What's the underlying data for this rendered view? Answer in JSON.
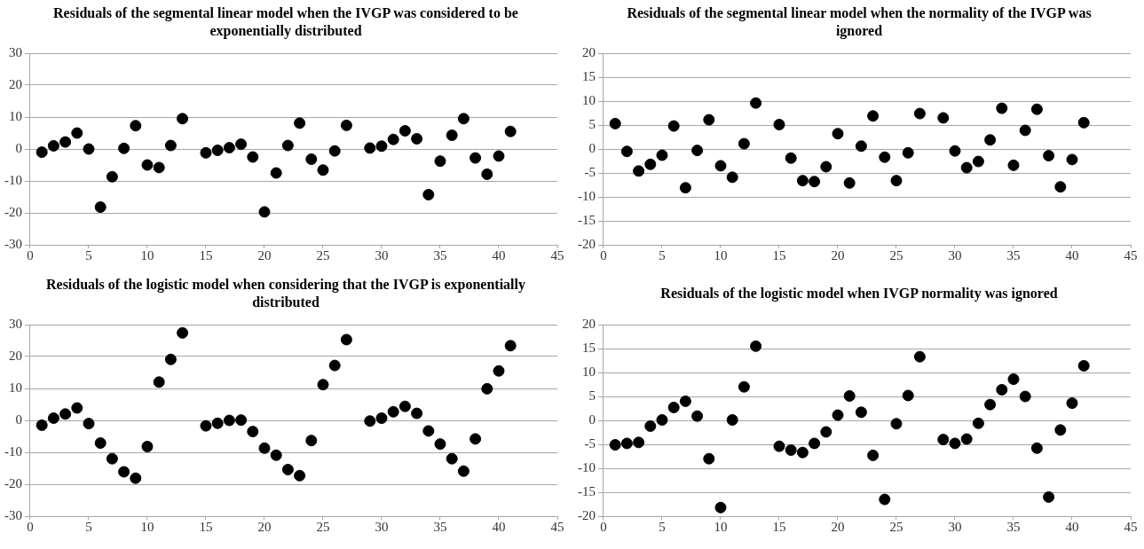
{
  "chart_data": [
    {
      "type": "scatter",
      "title": "Residuals of the segmental linear model when the IVGP was considered to be exponentially distributed",
      "x": [
        1,
        2,
        3,
        4,
        5,
        6,
        7,
        8,
        9,
        10,
        11,
        12,
        13,
        15,
        16,
        17,
        18,
        19,
        20,
        21,
        22,
        23,
        24,
        25,
        26,
        27,
        29,
        30,
        31,
        32,
        33,
        34,
        35,
        36,
        37,
        38,
        39,
        40,
        41
      ],
      "values": [
        -1,
        1,
        2.2,
        5,
        0,
        -18.2,
        -8.7,
        0.2,
        7.3,
        -5,
        -5.8,
        1.1,
        9.5,
        -1.2,
        -0.4,
        0.4,
        1.5,
        -2.5,
        -19.7,
        -7.5,
        1.1,
        8.1,
        -3.2,
        -6.6,
        -0.6,
        7.4,
        0.3,
        0.9,
        3,
        5.7,
        3.2,
        -14.3,
        -3.8,
        4.3,
        9.5,
        -2.8,
        -7.9,
        -2.2,
        5.5
      ],
      "color": "#000000",
      "marker": "circle",
      "grid": "y",
      "xlim": [
        0,
        45
      ],
      "xticks": [
        0,
        5,
        10,
        15,
        20,
        25,
        30,
        35,
        40,
        45
      ],
      "ylim": [
        -30,
        30
      ],
      "yticks": [
        -30,
        -20,
        -10,
        0,
        10,
        20,
        30
      ]
    },
    {
      "type": "scatter",
      "title": "Residuals of the segmental linear model when the normality of the IVGP was ignored",
      "x": [
        1,
        2,
        3,
        4,
        5,
        6,
        7,
        8,
        9,
        10,
        11,
        12,
        13,
        15,
        16,
        17,
        18,
        19,
        20,
        21,
        22,
        23,
        24,
        25,
        26,
        27,
        29,
        30,
        31,
        32,
        33,
        34,
        35,
        36,
        37,
        38,
        39,
        40,
        41
      ],
      "values": [
        5.3,
        -0.5,
        -4.6,
        -3.2,
        -1.3,
        4.8,
        -8.1,
        -0.3,
        6.1,
        -3.5,
        -5.9,
        1.1,
        9.6,
        5.1,
        -1.9,
        -6.6,
        -6.8,
        -3.7,
        3.2,
        -7.1,
        0.6,
        6.9,
        -1.7,
        -6.6,
        -0.8,
        7.4,
        6.5,
        -0.4,
        -3.9,
        -2.6,
        1.9,
        8.5,
        -3.4,
        3.9,
        8.3,
        -1.4,
        -7.9,
        -2.2,
        5.5
      ],
      "color": "#000000",
      "marker": "circle",
      "grid": "y",
      "xlim": [
        0,
        45
      ],
      "xticks": [
        0,
        5,
        10,
        15,
        20,
        25,
        30,
        35,
        40,
        45
      ],
      "ylim": [
        -20,
        20
      ],
      "yticks": [
        -20,
        -15,
        -10,
        -5,
        0,
        5,
        10,
        15,
        20
      ]
    },
    {
      "type": "scatter",
      "title": "Residuals of the logistic model when considering that the IVGP is exponentially distributed",
      "x": [
        1,
        2,
        3,
        4,
        5,
        6,
        7,
        8,
        9,
        10,
        11,
        12,
        13,
        15,
        16,
        17,
        18,
        19,
        20,
        21,
        22,
        23,
        24,
        25,
        26,
        27,
        29,
        30,
        31,
        32,
        33,
        34,
        35,
        36,
        37,
        38,
        39,
        40,
        41
      ],
      "values": [
        -1.5,
        0.7,
        2,
        3.9,
        -1,
        -7.1,
        -12,
        -16.1,
        -18.1,
        -8.2,
        12,
        19.1,
        27.4,
        -1.7,
        -0.9,
        0,
        0.1,
        -3.5,
        -8.7,
        -10.9,
        -15.4,
        -17.3,
        -6.3,
        11.2,
        17.2,
        25.3,
        -0.2,
        0.7,
        2.7,
        4.4,
        2.2,
        -3.3,
        -7.4,
        -12,
        -15.9,
        -5.8,
        9.9,
        15.5,
        23.4
      ],
      "color": "#000000",
      "marker": "circle",
      "grid": "y",
      "xlim": [
        0,
        45
      ],
      "xticks": [
        0,
        5,
        10,
        15,
        20,
        25,
        30,
        35,
        40,
        45
      ],
      "ylim": [
        -30,
        30
      ],
      "yticks": [
        -30,
        -20,
        -10,
        0,
        10,
        20,
        30
      ]
    },
    {
      "type": "scatter",
      "title": "Residuals of the logistic model when IVGP normality was ignored",
      "x": [
        1,
        2,
        3,
        4,
        5,
        6,
        7,
        8,
        9,
        10,
        11,
        12,
        13,
        15,
        16,
        17,
        18,
        19,
        20,
        21,
        22,
        23,
        24,
        25,
        26,
        27,
        29,
        30,
        31,
        32,
        33,
        34,
        35,
        36,
        37,
        38,
        39,
        40,
        41
      ],
      "values": [
        -5.1,
        -4.8,
        -4.6,
        -1.2,
        0.1,
        2.7,
        4,
        0.9,
        -8,
        -18.2,
        0.1,
        7,
        15.5,
        -5.4,
        -6.2,
        -6.7,
        -4.8,
        -2.4,
        1.1,
        5.1,
        1.7,
        -7.3,
        -16.5,
        -0.7,
        5.2,
        13.3,
        -4,
        -4.8,
        -3.9,
        -0.6,
        3.3,
        6.4,
        8.6,
        5,
        -5.8,
        -16,
        -2,
        3.6,
        11.4
      ],
      "color": "#000000",
      "marker": "circle",
      "grid": "y",
      "xlim": [
        0,
        45
      ],
      "xticks": [
        0,
        5,
        10,
        15,
        20,
        25,
        30,
        35,
        40,
        45
      ],
      "ylim": [
        -20,
        20
      ],
      "yticks": [
        -20,
        -15,
        -10,
        -5,
        0,
        5,
        10,
        15,
        20
      ]
    }
  ]
}
